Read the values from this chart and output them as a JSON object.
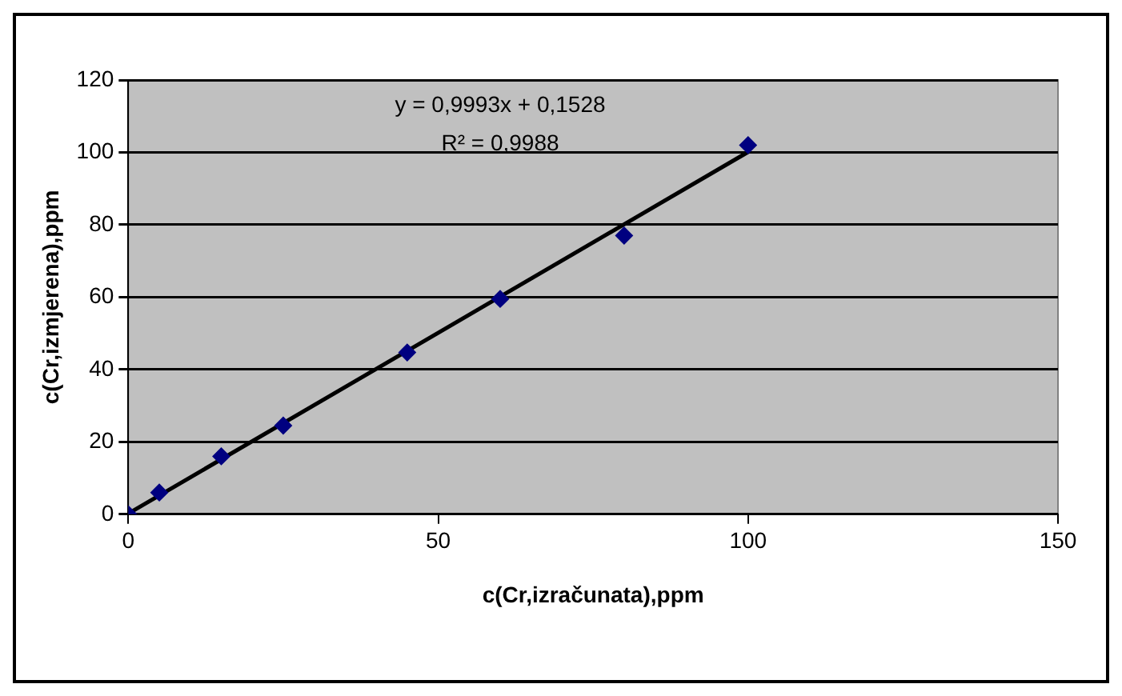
{
  "chart_data": {
    "type": "scatter",
    "xlabel": "c(Cr,izračunata),ppm",
    "ylabel": "c(Cr,izmjerena),ppm",
    "x": [
      0,
      5,
      15,
      25,
      45,
      60,
      80,
      100
    ],
    "series": [
      {
        "color": "#000080",
        "marker": "diamond",
        "values": [
          0,
          6,
          16,
          24.5,
          44.7,
          59.5,
          77,
          102
        ]
      },
      {
        "type": "line",
        "color": "#000000",
        "marker": "none",
        "x": [
          0,
          100
        ],
        "values": [
          0.2,
          100.1
        ]
      }
    ],
    "xlim": [
      0,
      150
    ],
    "xticks": [
      0,
      50,
      100,
      150
    ],
    "ylim": [
      0,
      120
    ],
    "yticks": [
      0,
      20,
      40,
      60,
      80,
      100,
      120
    ],
    "grid": "y",
    "legend": false,
    "annotations": [
      "y = 0,9993x + 0,1528",
      "R² = 0,9988"
    ]
  }
}
